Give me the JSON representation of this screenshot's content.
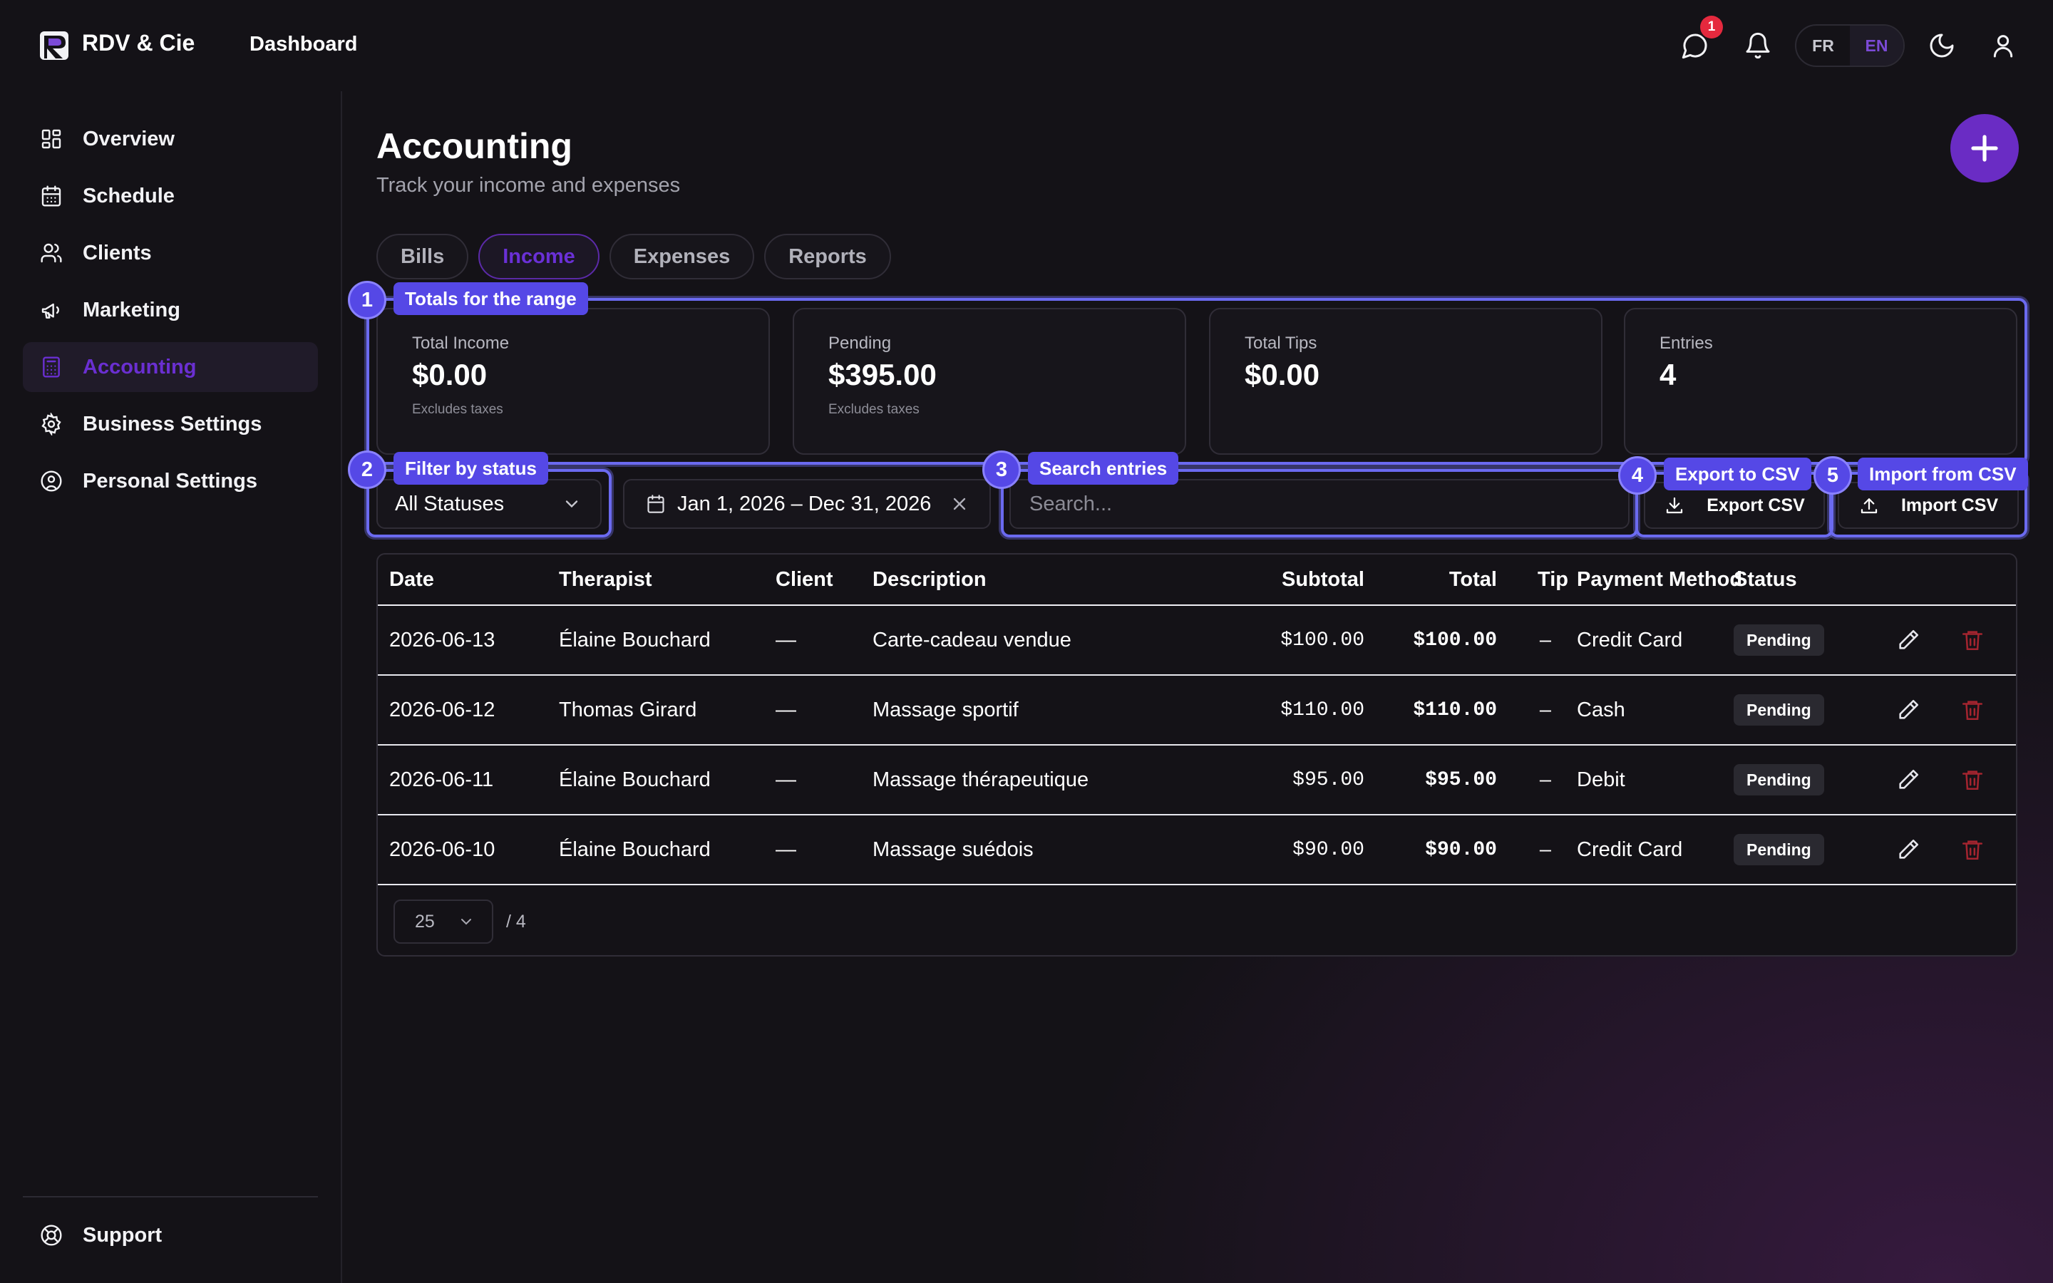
{
  "app": {
    "brand": "RDV & Cie",
    "nav_link": "Dashboard",
    "notif_count": "1",
    "lang": {
      "fr": "FR",
      "en": "EN"
    }
  },
  "sidebar": {
    "items": [
      {
        "label": "Overview",
        "icon": "grid-icon"
      },
      {
        "label": "Schedule",
        "icon": "calendar-icon"
      },
      {
        "label": "Clients",
        "icon": "users-icon"
      },
      {
        "label": "Marketing",
        "icon": "megaphone-icon"
      },
      {
        "label": "Accounting",
        "icon": "calculator-icon",
        "active": true
      },
      {
        "label": "Business Settings",
        "icon": "gear-icon"
      },
      {
        "label": "Personal Settings",
        "icon": "user-circle-icon"
      }
    ],
    "support": "Support"
  },
  "page": {
    "title": "Accounting",
    "subtitle": "Track your income and expenses"
  },
  "tabs": [
    {
      "label": "Bills"
    },
    {
      "label": "Income",
      "active": true
    },
    {
      "label": "Expenses"
    },
    {
      "label": "Reports"
    }
  ],
  "stats": [
    {
      "label": "Total Income",
      "value": "$0.00",
      "note": "Excludes taxes"
    },
    {
      "label": "Pending",
      "value": "$395.00",
      "note": "Excludes taxes"
    },
    {
      "label": "Total Tips",
      "value": "$0.00",
      "note": ""
    },
    {
      "label": "Entries",
      "value": "4",
      "note": ""
    }
  ],
  "filters": {
    "status": "All Statuses",
    "date_range": "Jan 1, 2026 – Dec 31, 2026",
    "search_placeholder": "Search...",
    "export_label": "Export CSV",
    "import_label": "Import CSV"
  },
  "callouts": [
    {
      "num": "1",
      "label": "Totals for the range"
    },
    {
      "num": "2",
      "label": "Filter by status"
    },
    {
      "num": "3",
      "label": "Search entries"
    },
    {
      "num": "4",
      "label": "Export to CSV"
    },
    {
      "num": "5",
      "label": "Import from CSV"
    }
  ],
  "table": {
    "headers": {
      "date": "Date",
      "therapist": "Therapist",
      "client": "Client",
      "description": "Description",
      "subtotal": "Subtotal",
      "total": "Total",
      "tip": "Tip",
      "payment": "Payment Method",
      "status": "Status"
    },
    "rows": [
      {
        "date": "2026-06-13",
        "therapist": "Élaine Bouchard",
        "client": "—",
        "description": "Carte-cadeau vendue",
        "subtotal": "$100.00",
        "total": "$100.00",
        "tip": "–",
        "payment": "Credit Card",
        "status": "Pending"
      },
      {
        "date": "2026-06-12",
        "therapist": "Thomas Girard",
        "client": "—",
        "description": "Massage sportif",
        "subtotal": "$110.00",
        "total": "$110.00",
        "tip": "–",
        "payment": "Cash",
        "status": "Pending"
      },
      {
        "date": "2026-06-11",
        "therapist": "Élaine Bouchard",
        "client": "—",
        "description": "Massage thérapeutique",
        "subtotal": "$95.00",
        "total": "$95.00",
        "tip": "–",
        "payment": "Debit",
        "status": "Pending"
      },
      {
        "date": "2026-06-10",
        "therapist": "Élaine Bouchard",
        "client": "—",
        "description": "Massage suédois",
        "subtotal": "$90.00",
        "total": "$90.00",
        "tip": "–",
        "payment": "Credit Card",
        "status": "Pending"
      }
    ],
    "page_size": "25",
    "page_total": "/ 4"
  },
  "colors": {
    "accent": "#6a2cc4",
    "callout": "#5548e6",
    "delete": "#a3242f"
  }
}
